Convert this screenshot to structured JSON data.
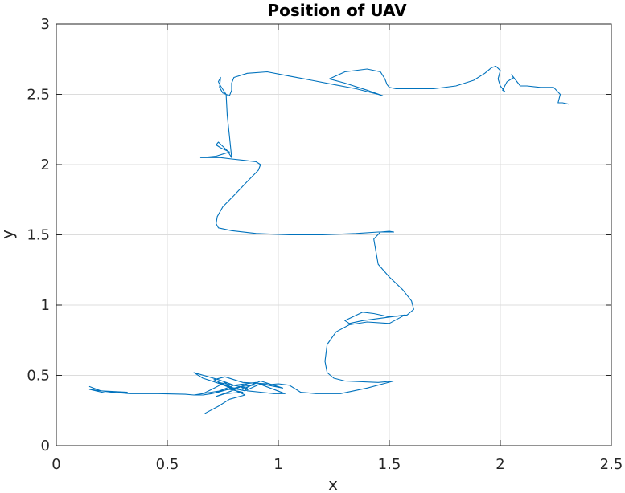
{
  "chart_data": {
    "type": "line",
    "title": "Position of UAV",
    "xlabel": "x",
    "ylabel": "y",
    "xlim": [
      0,
      2.5
    ],
    "ylim": [
      0,
      3
    ],
    "xticks": [
      "0",
      "0.5",
      "1",
      "1.5",
      "2",
      "2.5"
    ],
    "yticks": [
      "0",
      "0.5",
      "1",
      "1.5",
      "2",
      "2.5",
      "3"
    ],
    "grid": true,
    "line_color": "#0072BD",
    "series": [
      {
        "x": [
          0.15,
          0.2,
          0.32,
          0.22,
          0.15,
          0.25,
          0.33,
          0.46,
          0.58,
          0.62,
          0.66,
          0.7,
          0.73,
          0.75,
          0.79,
          0.72,
          0.66,
          0.62,
          0.73,
          0.8,
          0.86,
          0.82,
          0.76,
          0.71,
          0.76,
          0.84,
          0.95,
          0.83,
          0.86,
          0.92,
          0.98,
          1.03,
          0.93,
          1.0,
          1.05,
          1.08,
          1.1,
          1.17,
          1.28,
          1.4,
          1.52,
          1.45,
          1.3,
          1.25,
          1.22,
          1.21,
          1.22,
          1.26,
          1.32,
          1.4,
          1.5,
          1.57,
          1.38,
          1.32,
          1.3,
          1.38,
          1.43,
          1.49,
          1.53,
          1.58,
          1.61,
          1.6,
          1.56,
          1.5,
          1.45,
          1.44,
          1.43,
          1.46,
          1.5,
          1.52,
          1.45,
          1.35,
          1.2,
          1.05,
          0.9,
          0.79,
          0.73,
          0.72,
          0.725,
          0.75,
          0.8,
          0.86,
          0.91,
          0.92,
          0.9,
          0.85,
          0.79,
          0.74,
          0.68,
          0.65,
          0.72,
          0.78,
          0.74,
          0.72,
          0.73,
          0.77,
          0.79,
          0.78,
          0.77,
          0.765,
          0.74,
          0.73,
          0.74,
          0.735,
          0.75,
          0.78,
          0.79,
          0.79,
          0.8,
          0.86,
          0.95,
          1.05,
          1.15,
          1.25,
          1.35,
          1.45,
          1.47,
          1.4,
          1.3,
          1.23,
          1.3,
          1.4,
          1.46,
          1.48,
          1.49,
          1.5,
          1.53,
          1.6,
          1.7,
          1.8,
          1.88,
          1.93,
          1.96,
          1.98,
          2.0,
          1.99,
          2.0,
          2.02,
          2.01,
          2.03,
          2.06,
          2.05,
          2.08,
          2.09,
          2.12,
          2.18,
          2.24,
          2.27,
          2.26,
          2.28,
          2.31
        ]
      },
      {
        "x": [
          0.67,
          0.73,
          0.78,
          0.85,
          0.73,
          0.83,
          0.72,
          0.8,
          0.9,
          0.84,
          0.92,
          1.02,
          0.92,
          0.85,
          0.79,
          0.76,
          0.7,
          0.66,
          0.62,
          0.7,
          0.78,
          0.84,
          0.76,
          0.72,
          0.79,
          0.86
        ]
      }
    ],
    "series_y": [
      [
        0.42,
        0.39,
        0.38,
        0.375,
        0.4,
        0.38,
        0.37,
        0.37,
        0.365,
        0.36,
        0.36,
        0.37,
        0.38,
        0.39,
        0.41,
        0.45,
        0.48,
        0.52,
        0.47,
        0.43,
        0.41,
        0.4,
        0.43,
        0.47,
        0.49,
        0.45,
        0.44,
        0.42,
        0.39,
        0.38,
        0.37,
        0.37,
        0.43,
        0.44,
        0.43,
        0.4,
        0.38,
        0.37,
        0.37,
        0.41,
        0.46,
        0.45,
        0.46,
        0.48,
        0.52,
        0.6,
        0.72,
        0.81,
        0.86,
        0.88,
        0.87,
        0.93,
        0.89,
        0.87,
        0.89,
        0.95,
        0.94,
        0.92,
        0.92,
        0.93,
        0.97,
        1.03,
        1.11,
        1.2,
        1.29,
        1.38,
        1.47,
        1.52,
        1.525,
        1.52,
        1.52,
        1.51,
        1.5,
        1.5,
        1.51,
        1.53,
        1.55,
        1.58,
        1.63,
        1.7,
        1.78,
        1.88,
        1.96,
        2.0,
        2.02,
        2.03,
        2.04,
        2.05,
        2.05,
        2.05,
        2.06,
        2.09,
        2.12,
        2.14,
        2.16,
        2.1,
        2.05,
        2.2,
        2.35,
        2.5,
        2.56,
        2.59,
        2.62,
        2.55,
        2.51,
        2.49,
        2.53,
        2.58,
        2.62,
        2.65,
        2.66,
        2.63,
        2.6,
        2.57,
        2.54,
        2.5,
        2.49,
        2.53,
        2.58,
        2.61,
        2.66,
        2.68,
        2.66,
        2.61,
        2.57,
        2.55,
        2.54,
        2.54,
        2.54,
        2.56,
        2.6,
        2.65,
        2.69,
        2.7,
        2.67,
        2.61,
        2.56,
        2.52,
        2.53,
        2.59,
        2.62,
        2.64,
        2.58,
        2.56,
        2.56,
        2.55,
        2.55,
        2.5,
        2.44,
        2.44,
        2.43
      ],
      [
        0.23,
        0.28,
        0.33,
        0.36,
        0.45,
        0.42,
        0.38,
        0.43,
        0.45,
        0.4,
        0.46,
        0.41,
        0.44,
        0.39,
        0.41,
        0.45,
        0.4,
        0.37,
        0.36,
        0.38,
        0.4,
        0.38,
        0.37,
        0.35,
        0.39,
        0.44
      ]
    ]
  }
}
